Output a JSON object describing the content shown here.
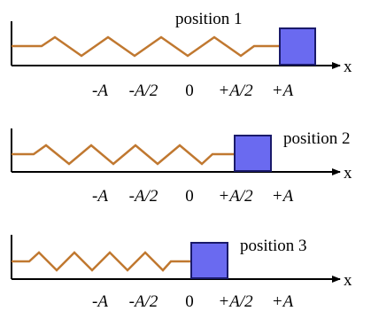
{
  "diagram": {
    "axis_label": "x",
    "tick_labels": [
      "-A",
      "-A/2",
      "0",
      "+A/2",
      "+A"
    ],
    "colors": {
      "spring": "#c07830",
      "block_fill": "#6a6af0",
      "block_stroke": "#1a1a6a",
      "axis": "#000000"
    },
    "panels": [
      {
        "label": "position 1",
        "block_position": "+A"
      },
      {
        "label": "position 2",
        "block_position": "+A/2"
      },
      {
        "label": "position 3",
        "block_position": "0"
      }
    ]
  }
}
